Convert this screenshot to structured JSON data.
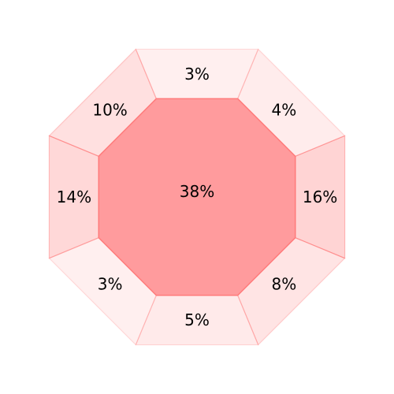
{
  "chart_data": {
    "type": "octagon",
    "center": {
      "label": "38%",
      "value": 38
    },
    "segments": [
      {
        "label": "3%",
        "value": 3
      },
      {
        "label": "4%",
        "value": 4
      },
      {
        "label": "16%",
        "value": 16
      },
      {
        "label": "8%",
        "value": 8
      },
      {
        "label": "5%",
        "value": 5
      },
      {
        "label": "3%",
        "value": 3
      },
      {
        "label": "14%",
        "value": 14
      },
      {
        "label": "10%",
        "value": 10
      }
    ],
    "colors": {
      "accent": "#ff0000",
      "center_fill": "#ff9b9d",
      "center_stroke": "#ff7b7b"
    }
  }
}
